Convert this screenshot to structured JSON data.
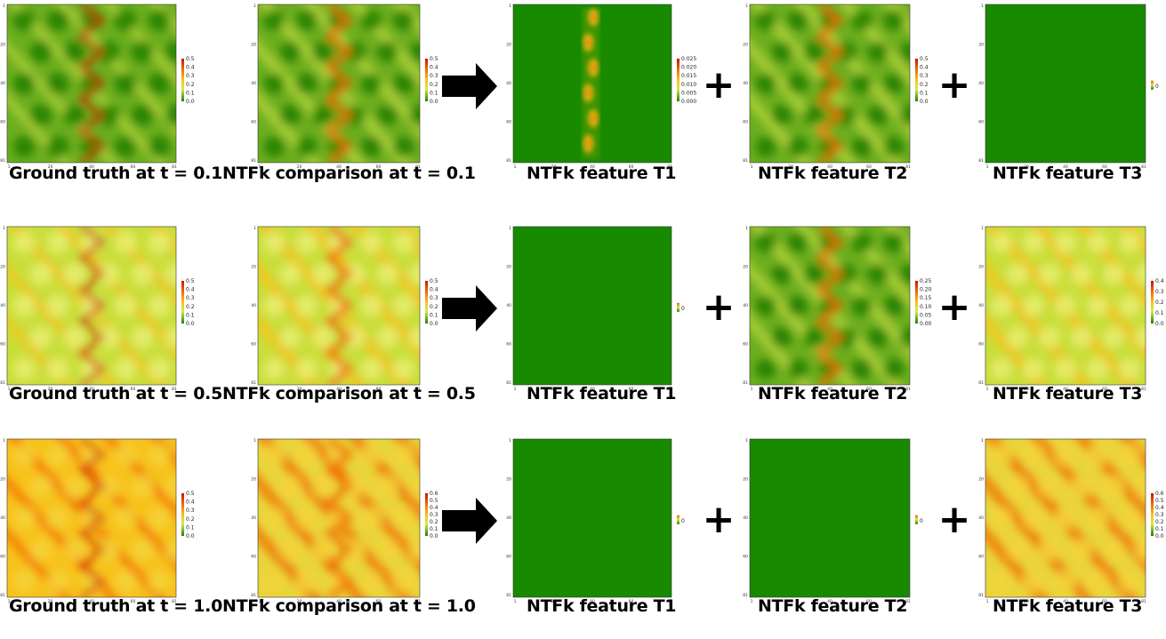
{
  "colors": {
    "low": "#1f7f00",
    "mid_low": "#7ab800",
    "mid": "#d6e94a",
    "mid_high": "#f7c21b",
    "high": "#f06a00",
    "peak": "#cc1100",
    "uniform": "#188a00",
    "arrow": "#000000"
  },
  "axis_ticks": [
    "1",
    "20",
    "40",
    "60",
    "81"
  ],
  "operators": {
    "plus": "+"
  },
  "rows": [
    {
      "id": "t01",
      "panels": [
        {
          "label": "Ground truth at t = 0.1",
          "pattern": "truth",
          "level": 0.1,
          "colorbar": [
            "0.5",
            "0.4",
            "0.3",
            "0.2",
            "0.1",
            "0.0"
          ]
        },
        {
          "label": "NTFk comparison at t = 0.1",
          "pattern": "compare",
          "level": 0.1,
          "colorbar": [
            "0.5",
            "0.4",
            "0.3",
            "0.2",
            "0.1",
            "0.0"
          ]
        },
        {
          "label": "NTFk feature T1",
          "pattern": "spots",
          "level": 0.1,
          "colorbar": [
            "0.025",
            "0.020",
            "0.015",
            "0.010",
            "0.005",
            "0.000"
          ]
        },
        {
          "label": "NTFk feature T2",
          "pattern": "compare",
          "level": 0.1,
          "colorbar": [
            "0.5",
            "0.4",
            "0.3",
            "0.2",
            "0.1",
            "0.0"
          ]
        },
        {
          "label": "NTFk feature T3",
          "pattern": "uniform",
          "level": 0,
          "colorbar": [
            "0"
          ]
        }
      ]
    },
    {
      "id": "t05",
      "panels": [
        {
          "label": "Ground truth at t = 0.5",
          "pattern": "truth",
          "level": 0.5,
          "colorbar": [
            "0.5",
            "0.4",
            "0.3",
            "0.2",
            "0.1",
            "0.0"
          ]
        },
        {
          "label": "NTFk comparison at t = 0.5",
          "pattern": "compare",
          "level": 0.5,
          "colorbar": [
            "0.5",
            "0.4",
            "0.3",
            "0.2",
            "0.1",
            "0.0"
          ]
        },
        {
          "label": "NTFk feature T1",
          "pattern": "uniform",
          "level": 0,
          "colorbar": [
            "0"
          ]
        },
        {
          "label": "NTFk feature T2",
          "pattern": "compare",
          "level": 0.1,
          "colorbar": [
            "0.25",
            "0.20",
            "0.15",
            "0.10",
            "0.05",
            "0.00"
          ]
        },
        {
          "label": "NTFk feature T3",
          "pattern": "diag",
          "level": 0.45,
          "colorbar": [
            "0.4",
            "0.3",
            "0.2",
            "0.1",
            "0.0"
          ]
        }
      ]
    },
    {
      "id": "t10",
      "panels": [
        {
          "label": "Ground truth at t = 1.0",
          "pattern": "truth",
          "level": 1.0,
          "colorbar": [
            "0.5",
            "0.4",
            "0.3",
            "0.2",
            "0.1",
            "0.0"
          ]
        },
        {
          "label": "NTFk comparison at t = 1.0",
          "pattern": "compare",
          "level": 0.8,
          "colorbar": [
            "0.6",
            "0.5",
            "0.4",
            "0.3",
            "0.2",
            "0.1",
            "0.0"
          ]
        },
        {
          "label": "NTFk feature T1",
          "pattern": "uniform",
          "level": 0,
          "colorbar": [
            "0"
          ]
        },
        {
          "label": "NTFk feature T2",
          "pattern": "uniform",
          "level": 0,
          "colorbar": [
            "0"
          ]
        },
        {
          "label": "NTFk feature T3",
          "pattern": "diag",
          "level": 0.75,
          "colorbar": [
            "0.6",
            "0.5",
            "0.4",
            "0.3",
            "0.2",
            "0.1",
            "0.0"
          ]
        }
      ]
    }
  ]
}
